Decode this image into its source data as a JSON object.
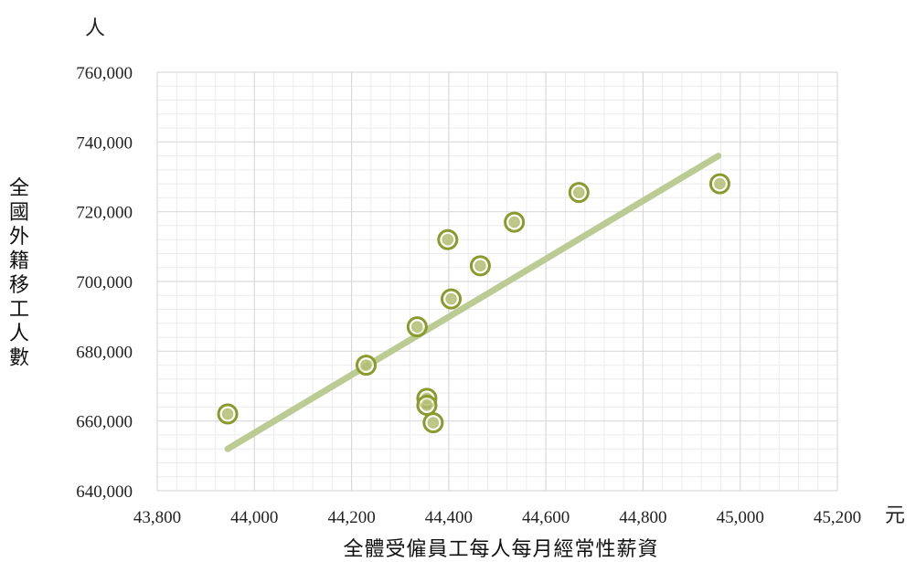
{
  "chart_data": {
    "type": "scatter",
    "title": "",
    "xlabel": "全體受僱員工每人每月經常性薪資",
    "ylabel": "全國外籍移工人數",
    "x_unit": "元",
    "y_unit": "人",
    "xlim": [
      43800,
      45200
    ],
    "ylim": [
      640000,
      760000
    ],
    "x_tick_labels": [
      "43,800",
      "44,000",
      "44,200",
      "44,400",
      "44,600",
      "44,800",
      "45,000",
      "45,200"
    ],
    "y_tick_labels": [
      "640,000",
      "660,000",
      "680,000",
      "700,000",
      "720,000",
      "740,000",
      "760,000"
    ],
    "grid": true,
    "trendline": true,
    "colors": {
      "marker": "#8a9a2c",
      "trendline": "#bccb93",
      "grid": "#d9d9d9"
    },
    "points": [
      {
        "x": 43945,
        "y": 662000
      },
      {
        "x": 44230,
        "y": 676000
      },
      {
        "x": 44335,
        "y": 687000
      },
      {
        "x": 44355,
        "y": 666500
      },
      {
        "x": 44355,
        "y": 664500
      },
      {
        "x": 44368,
        "y": 659500
      },
      {
        "x": 44398,
        "y": 712000
      },
      {
        "x": 44405,
        "y": 695000
      },
      {
        "x": 44465,
        "y": 704500
      },
      {
        "x": 44535,
        "y": 717000
      },
      {
        "x": 44668,
        "y": 725500
      },
      {
        "x": 44958,
        "y": 728000
      }
    ],
    "trend": {
      "x": [
        43945,
        44955
      ],
      "y": [
        652000,
        736000
      ]
    }
  }
}
